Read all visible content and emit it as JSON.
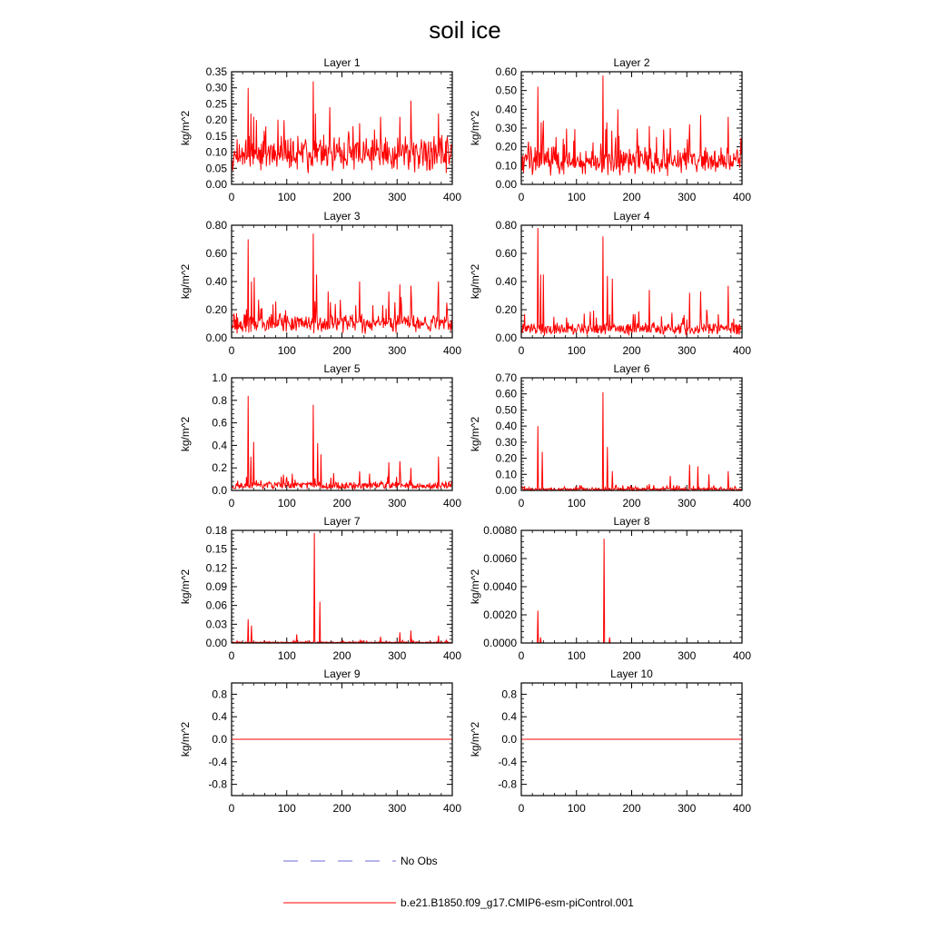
{
  "figure_title": "soil ice",
  "chart_data": {
    "type": "line",
    "title": "soil ice",
    "xlim": [
      0,
      400
    ],
    "x_ticks": [
      "0",
      "100",
      "200",
      "300",
      "400"
    ],
    "series_names": [
      "No Obs",
      "b.e21.B1850.f09_g17.CMIP6-esm-piControl.001"
    ],
    "panels": [
      {
        "title": "Layer 1",
        "ylabel": "kg/m^2",
        "ylim": [
          0,
          0.35
        ],
        "y_ticks": [
          "0.00",
          "0.05",
          "0.10",
          "0.15",
          "0.20",
          "0.25",
          "0.30",
          "0.35"
        ],
        "baseline": 0.09,
        "noise": 0.05,
        "seed": 11,
        "peaks": [
          [
            30,
            0.3
          ],
          [
            35,
            0.22
          ],
          [
            40,
            0.21
          ],
          [
            45,
            0.2
          ],
          [
            62,
            0.18
          ],
          [
            148,
            0.32
          ],
          [
            152,
            0.22
          ],
          [
            178,
            0.24
          ],
          [
            232,
            0.19
          ],
          [
            270,
            0.21
          ],
          [
            305,
            0.21
          ],
          [
            325,
            0.26
          ],
          [
            375,
            0.22
          ]
        ]
      },
      {
        "title": "Layer 2",
        "ylabel": "kg/m^2",
        "ylim": [
          0,
          0.6
        ],
        "y_ticks": [
          "0.00",
          "0.10",
          "0.20",
          "0.30",
          "0.40",
          "0.50",
          "0.60"
        ],
        "baseline": 0.1,
        "noise": 0.09,
        "seed": 23,
        "peaks": [
          [
            30,
            0.52
          ],
          [
            36,
            0.33
          ],
          [
            40,
            0.34
          ],
          [
            148,
            0.58
          ],
          [
            155,
            0.33
          ],
          [
            175,
            0.4
          ],
          [
            232,
            0.31
          ],
          [
            270,
            0.3
          ],
          [
            305,
            0.32
          ],
          [
            325,
            0.37
          ],
          [
            375,
            0.36
          ]
        ]
      },
      {
        "title": "Layer 3",
        "ylabel": "kg/m^2",
        "ylim": [
          0,
          0.8
        ],
        "y_ticks": [
          "0.00",
          "0.20",
          "0.40",
          "0.60",
          "0.80"
        ],
        "baseline": 0.07,
        "noise": 0.1,
        "seed": 37,
        "peaks": [
          [
            30,
            0.7
          ],
          [
            36,
            0.4
          ],
          [
            41,
            0.43
          ],
          [
            148,
            0.74
          ],
          [
            154,
            0.45
          ],
          [
            175,
            0.33
          ],
          [
            232,
            0.4
          ],
          [
            285,
            0.33
          ],
          [
            305,
            0.38
          ],
          [
            325,
            0.37
          ],
          [
            375,
            0.4
          ]
        ]
      },
      {
        "title": "Layer 4",
        "ylabel": "kg/m^2",
        "ylim": [
          0,
          0.8
        ],
        "y_ticks": [
          "0.00",
          "0.20",
          "0.40",
          "0.60",
          "0.80"
        ],
        "baseline": 0.04,
        "noise": 0.07,
        "seed": 41,
        "peaks": [
          [
            30,
            0.78
          ],
          [
            35,
            0.45
          ],
          [
            40,
            0.45
          ],
          [
            148,
            0.72
          ],
          [
            156,
            0.44
          ],
          [
            165,
            0.42
          ],
          [
            232,
            0.34
          ],
          [
            305,
            0.32
          ],
          [
            325,
            0.33
          ],
          [
            375,
            0.37
          ]
        ]
      },
      {
        "title": "Layer 5",
        "ylabel": "kg/m^2",
        "ylim": [
          0,
          1.0
        ],
        "y_ticks": [
          "0.0",
          "0.2",
          "0.4",
          "0.6",
          "0.8",
          "1.0"
        ],
        "baseline": 0.02,
        "noise": 0.06,
        "seed": 53,
        "peaks": [
          [
            30,
            0.84
          ],
          [
            35,
            0.3
          ],
          [
            40,
            0.43
          ],
          [
            148,
            0.76
          ],
          [
            156,
            0.42
          ],
          [
            162,
            0.32
          ],
          [
            232,
            0.17
          ],
          [
            285,
            0.25
          ],
          [
            305,
            0.26
          ],
          [
            325,
            0.2
          ],
          [
            375,
            0.3
          ]
        ]
      },
      {
        "title": "Layer 6",
        "ylabel": "kg/m^2",
        "ylim": [
          0,
          0.7
        ],
        "y_ticks": [
          "0.00",
          "0.10",
          "0.20",
          "0.30",
          "0.40",
          "0.50",
          "0.60",
          "0.70"
        ],
        "baseline": 0.0,
        "noise": 0.015,
        "seed": 67,
        "peaks": [
          [
            30,
            0.4
          ],
          [
            38,
            0.24
          ],
          [
            148,
            0.61
          ],
          [
            156,
            0.27
          ],
          [
            165,
            0.12
          ],
          [
            232,
            0.04
          ],
          [
            270,
            0.09
          ],
          [
            305,
            0.16
          ],
          [
            320,
            0.15
          ],
          [
            340,
            0.1
          ],
          [
            375,
            0.12
          ]
        ]
      },
      {
        "title": "Layer 7",
        "ylabel": "kg/m^2",
        "ylim": [
          0,
          0.18
        ],
        "y_ticks": [
          "0.00",
          "0.03",
          "0.06",
          "0.09",
          "0.12",
          "0.15",
          "0.18"
        ],
        "baseline": 0.0,
        "noise": 0.002,
        "seed": 71,
        "peaks": [
          [
            30,
            0.038
          ],
          [
            36,
            0.028
          ],
          [
            118,
            0.014
          ],
          [
            150,
            0.176
          ],
          [
            160,
            0.066
          ],
          [
            270,
            0.01
          ],
          [
            305,
            0.017
          ],
          [
            325,
            0.02
          ],
          [
            375,
            0.012
          ]
        ]
      },
      {
        "title": "Layer 8",
        "ylabel": "kg/m^2",
        "ylim": [
          0,
          0.008
        ],
        "y_ticks": [
          "0.0000",
          "0.0020",
          "0.0040",
          "0.0060",
          "0.0080"
        ],
        "baseline": 0.0,
        "noise": 0.0,
        "seed": 83,
        "peaks": [
          [
            30,
            0.0023
          ],
          [
            35,
            0.0004
          ],
          [
            150,
            0.0074
          ],
          [
            160,
            0.0004
          ]
        ]
      },
      {
        "title": "Layer 9",
        "ylabel": "kg/m^2",
        "ylim": [
          -1.0,
          1.0
        ],
        "y_ticks": [
          "-0.8",
          "-0.4",
          "0.0",
          "0.4",
          "0.8"
        ],
        "y_tick_values": [
          -0.8,
          -0.4,
          0.0,
          0.4,
          0.8
        ],
        "baseline": 0.0,
        "noise": 0.0,
        "seed": 89,
        "peaks": []
      },
      {
        "title": "Layer 10",
        "ylabel": "kg/m^2",
        "ylim": [
          -1.0,
          1.0
        ],
        "y_ticks": [
          "-0.8",
          "-0.4",
          "0.0",
          "0.4",
          "0.8"
        ],
        "y_tick_values": [
          -0.8,
          -0.4,
          0.0,
          0.4,
          0.8
        ],
        "baseline": 0.0,
        "noise": 0.0,
        "seed": 97,
        "peaks": []
      }
    ],
    "legend": [
      {
        "label": "No Obs",
        "style": "dashed",
        "color": "#6a6ad8"
      },
      {
        "label": "b.e21.B1850.f09_g17.CMIP6-esm-piControl.001",
        "style": "solid",
        "color": "#ff0000"
      }
    ],
    "line_color": "#ff0000"
  }
}
